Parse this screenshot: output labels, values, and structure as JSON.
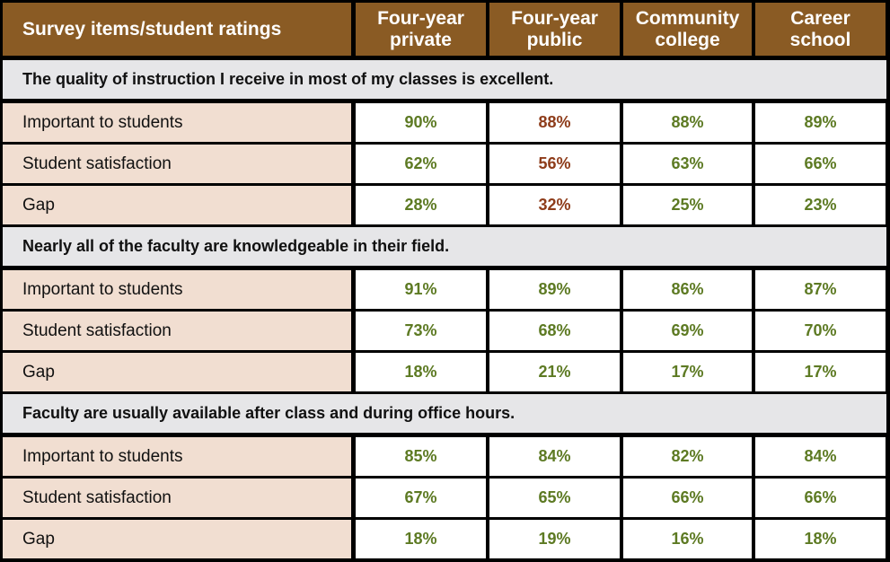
{
  "header": {
    "label": "Survey items/student ratings",
    "columns": [
      "Four-year\nprivate",
      "Four-year\npublic",
      "Community\ncollege",
      "Career\nschool"
    ]
  },
  "colors": {
    "header_bg": "#8a5b24",
    "section_bg": "#e6e6e8",
    "label_bg": "#f1ded1",
    "value_green": "#5d7a23",
    "value_brown": "#8e3c1a"
  },
  "sections": [
    {
      "title": "The quality of instruction I receive in most of my classes is excellent.",
      "rows": [
        {
          "label": "Important to students",
          "values": [
            "90%",
            "88%",
            "88%",
            "89%"
          ]
        },
        {
          "label": "Student satisfaction",
          "values": [
            "62%",
            "56%",
            "63%",
            "66%"
          ]
        },
        {
          "label": "Gap",
          "values": [
            "28%",
            "32%",
            "25%",
            "23%"
          ]
        }
      ]
    },
    {
      "title": "Nearly all of the faculty are knowledgeable in their field.",
      "rows": [
        {
          "label": "Important to students",
          "values": [
            "91%",
            "89%",
            "86%",
            "87%"
          ]
        },
        {
          "label": "Student satisfaction",
          "values": [
            "73%",
            "68%",
            "69%",
            "70%"
          ]
        },
        {
          "label": "Gap",
          "values": [
            "18%",
            "21%",
            "17%",
            "17%"
          ]
        }
      ]
    },
    {
      "title": "Faculty are usually available after class and during office hours.",
      "rows": [
        {
          "label": "Important to students",
          "values": [
            "85%",
            "84%",
            "82%",
            "84%"
          ]
        },
        {
          "label": "Student satisfaction",
          "values": [
            "67%",
            "65%",
            "66%",
            "66%"
          ]
        },
        {
          "label": "Gap",
          "values": [
            "18%",
            "19%",
            "16%",
            "18%"
          ]
        }
      ]
    }
  ]
}
